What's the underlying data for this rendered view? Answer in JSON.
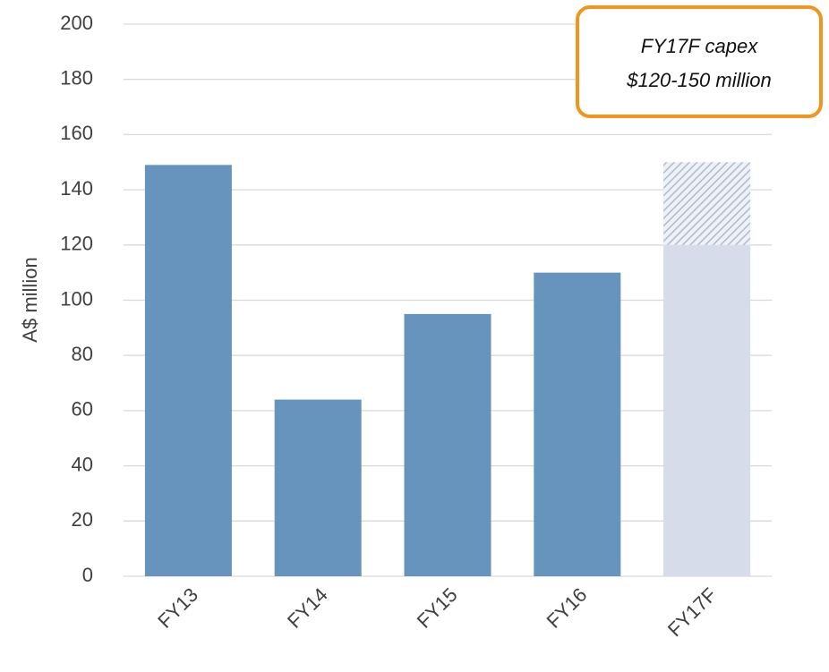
{
  "chart_data": {
    "type": "bar",
    "stacked": true,
    "y_label": "A$ million",
    "categories": [
      "FY13",
      "FY14",
      "FY15",
      "FY16",
      "FY17F"
    ],
    "series": [
      {
        "color": "#6694bd",
        "values": [
          149,
          64,
          95,
          110,
          null
        ]
      },
      {
        "color": "#d6dce9",
        "values": [
          null,
          null,
          null,
          null,
          120
        ]
      },
      {
        "color": "#c3cedc",
        "pattern": "hatch",
        "values": [
          null,
          null,
          null,
          null,
          30
        ]
      }
    ],
    "ylim": [
      0,
      200
    ],
    "yticks": [
      0,
      20,
      40,
      60,
      80,
      100,
      120,
      140,
      160,
      180,
      200
    ],
    "grid": true,
    "annotation": [
      "FY17F capex",
      "$120-150 million"
    ],
    "annotation_color": "#f0961e"
  }
}
